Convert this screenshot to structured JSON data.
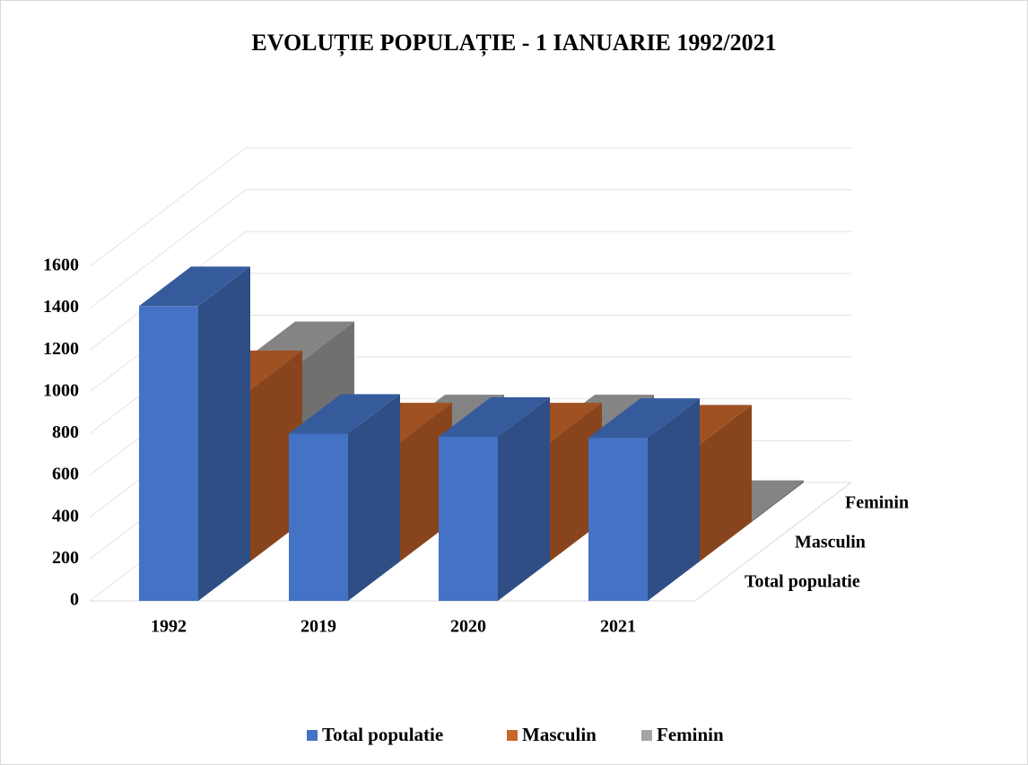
{
  "chart_data": {
    "type": "bar3d",
    "title": "EVOLUȚIE POPULAȚIE - 1 IANUARIE 1992/2021",
    "categories": [
      "1992",
      "2019",
      "2020",
      "2021"
    ],
    "series": [
      {
        "name": "Total populatie",
        "color": "#4472c4",
        "values": [
          1410,
          800,
          785,
          780
        ]
      },
      {
        "name": "Masculin",
        "color": "#c8652a",
        "values": [
          820,
          570,
          570,
          560
        ]
      },
      {
        "name": "Feminin",
        "color": "#a5a5a5",
        "values": [
          770,
          420,
          420,
          10
        ]
      }
    ],
    "ylim": [
      0,
      1600
    ],
    "yticks": [
      0,
      200,
      400,
      600,
      800,
      1000,
      1200,
      1400,
      1600
    ],
    "grid": true,
    "legend": "bottom"
  }
}
